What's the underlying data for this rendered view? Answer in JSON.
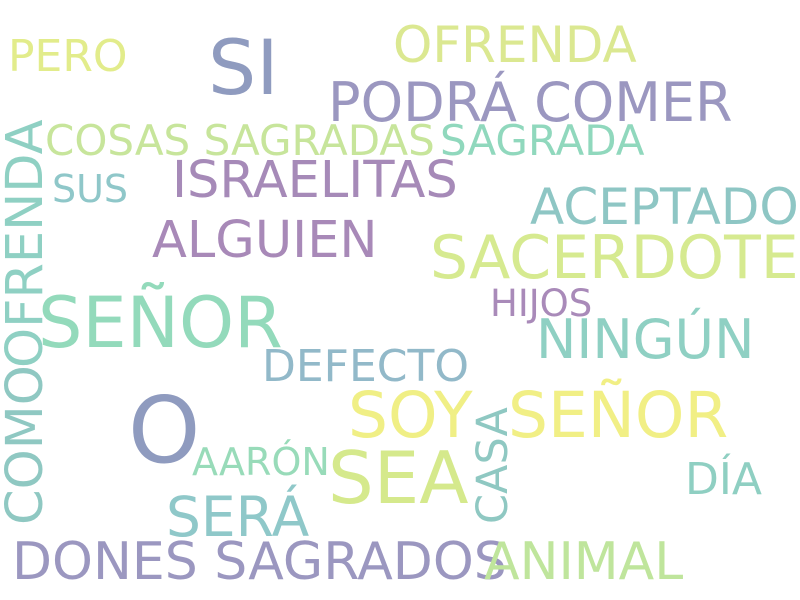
{
  "words": {
    "si": {
      "text": "SI",
      "color": "#8f9bbf"
    },
    "ofrenda1": {
      "text": "OFRENDA",
      "color": "#dbe891"
    },
    "pero": {
      "text": "PERO",
      "color": "#e2ec8b"
    },
    "podra": {
      "text": "PODRÁ COMER",
      "color": "#9b97c0"
    },
    "cosas": {
      "text": "COSAS SAGRADAS",
      "color": "#c7e59b"
    },
    "sagrada": {
      "text": "SAGRADA",
      "color": "#90d8bd"
    },
    "israel": {
      "text": "ISRAELITAS",
      "color": "#a68ab8"
    },
    "sus": {
      "text": "SUS",
      "color": "#8fc7c9"
    },
    "ofr_v": {
      "text": "OFRENDA",
      "color": "#8fd0c3"
    },
    "aceptado": {
      "text": "ACEPTADO",
      "color": "#8ec6c4"
    },
    "alguien": {
      "text": "ALGUIEN",
      "color": "#a889b8"
    },
    "sacerdote": {
      "text": "SACERDOTE",
      "color": "#d6ea90"
    },
    "senor1": {
      "text": "SEÑOR",
      "color": "#93dabb"
    },
    "hijos": {
      "text": "HIJOS",
      "color": "#a98ab9"
    },
    "ningun": {
      "text": "NINGÚN",
      "color": "#8fd0c3"
    },
    "defecto": {
      "text": "DEFECTO",
      "color": "#92b9c9"
    },
    "o": {
      "text": "O",
      "color": "#8f9bbf"
    },
    "como_v": {
      "text": "COMO",
      "color": "#8fc8c2"
    },
    "soy": {
      "text": "SOY",
      "color": "#f0ef85"
    },
    "senor2": {
      "text": "SEÑOR",
      "color": "#f1ef85"
    },
    "aaron": {
      "text": "AARÓN",
      "color": "#98dbb9"
    },
    "sea": {
      "text": "SEA",
      "color": "#d5e98c"
    },
    "casa_v": {
      "text": "CASA",
      "color": "#8fc8c2"
    },
    "dia": {
      "text": "DÍA",
      "color": "#8fcfc2"
    },
    "sera": {
      "text": "SERÁ",
      "color": "#8fc8c9"
    },
    "dones": {
      "text": "DONES SAGRADOS",
      "color": "#9b97c0"
    },
    "animal": {
      "text": "ANIMAL",
      "color": "#bfe59c"
    }
  }
}
